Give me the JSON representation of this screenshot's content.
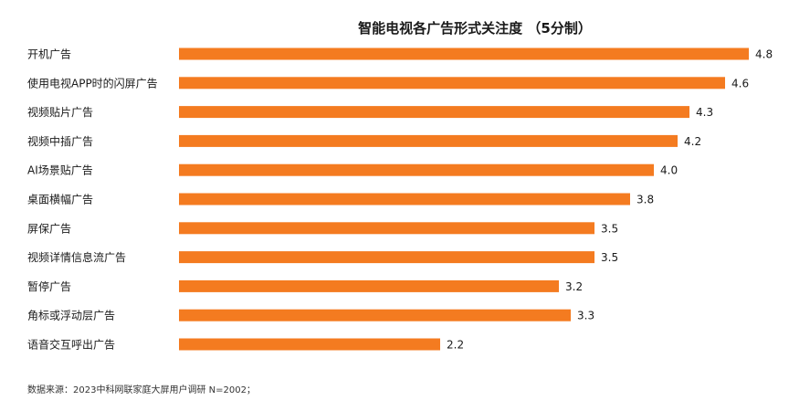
{
  "chart_data": {
    "type": "bar",
    "orientation": "horizontal",
    "title": "智能电视各广告形式关注度 （5分制）",
    "categories": [
      "开机广告",
      "使用电视APP时的闪屏广告",
      "视频贴片广告",
      "视频中插广告",
      "AI场景贴广告",
      "桌面横幅广告",
      "屏保广告",
      "视频详情信息流广告",
      "暂停广告",
      "角标或浮动层广告",
      "语音交互呼出广告"
    ],
    "values": [
      4.8,
      4.6,
      4.3,
      4.2,
      4.0,
      3.8,
      3.5,
      3.5,
      3.2,
      3.3,
      2.2
    ],
    "value_labels": [
      "4.8",
      "4.6",
      "4.3",
      "4.2",
      "4.0",
      "3.8",
      "3.5",
      "3.5",
      "3.2",
      "3.3",
      "2.2"
    ],
    "xlim": [
      0,
      5
    ],
    "bar_color": "#F47B20",
    "xlabel": "",
    "ylabel": "",
    "grid": false,
    "legend": "none"
  },
  "footer": {
    "source": "数据来源：2023中科网联家庭大屏用户调研 N=2002；"
  }
}
